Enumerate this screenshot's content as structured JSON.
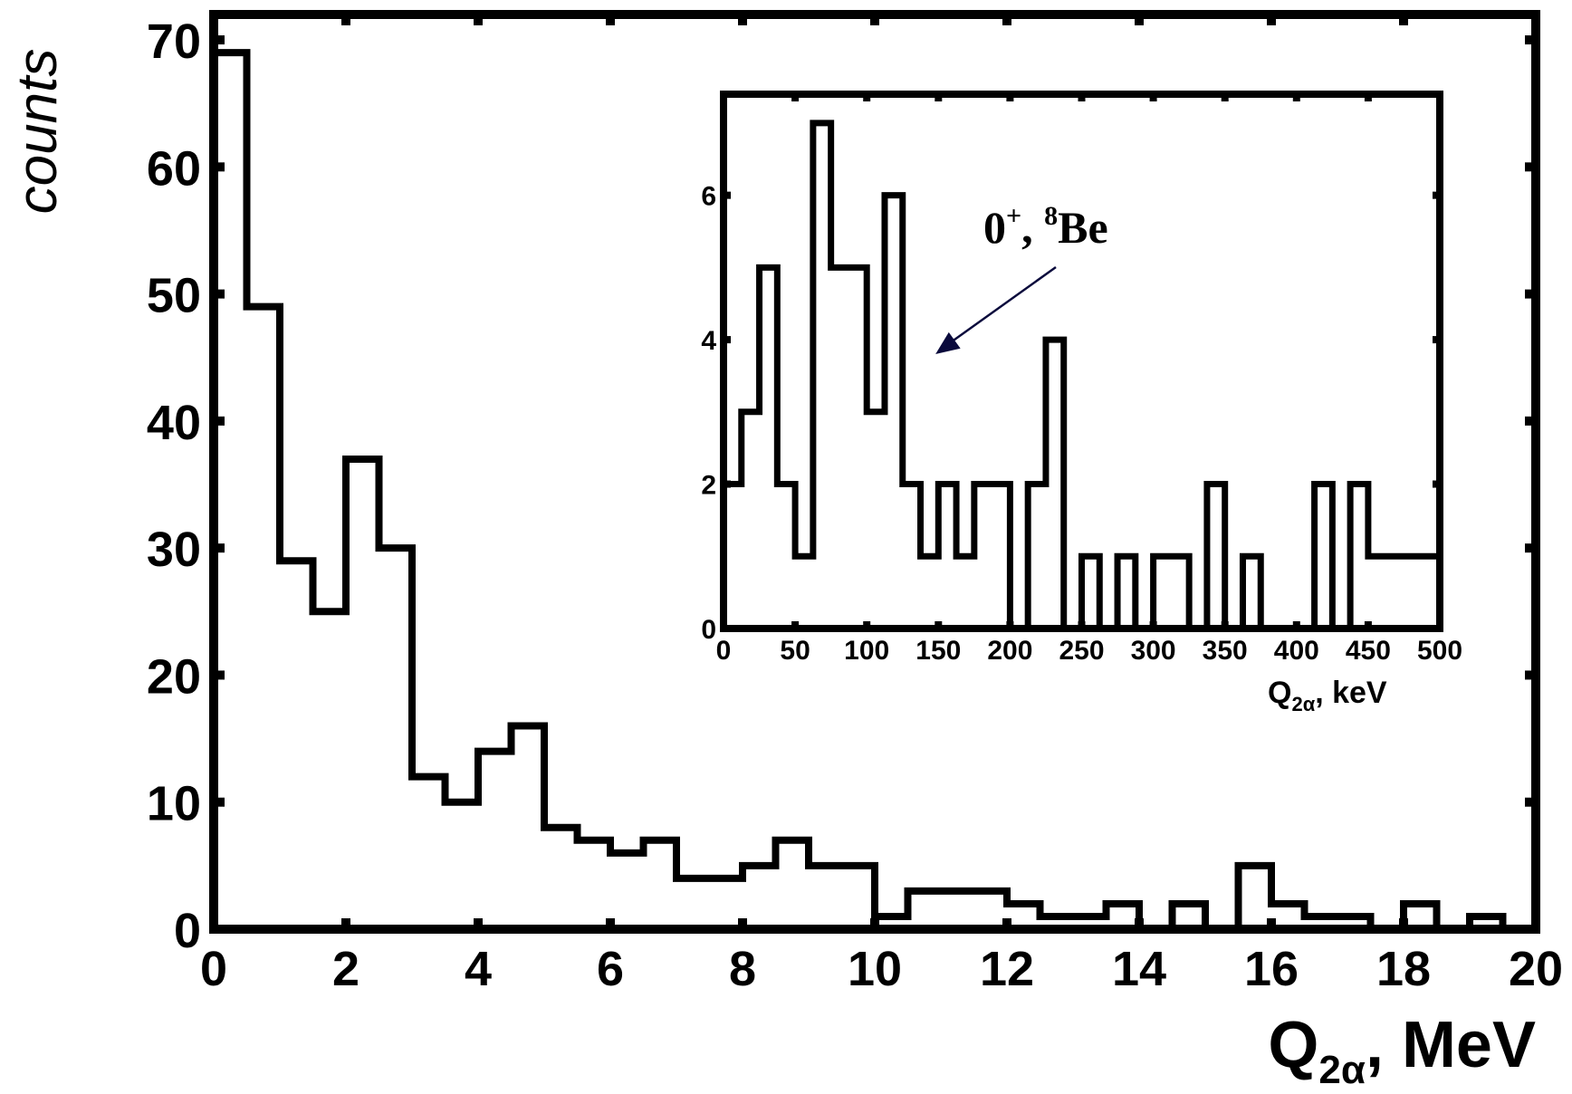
{
  "chart_data": [
    {
      "type": "histogram-step",
      "role": "main",
      "xlabel": {
        "main": "Q",
        "sub": "2α",
        "rest": ", MeV"
      },
      "ylabel": "counts",
      "xlim": [
        0,
        20
      ],
      "ylim": [
        0,
        72
      ],
      "xticks": [
        0,
        2,
        4,
        6,
        8,
        10,
        12,
        14,
        16,
        18,
        20
      ],
      "xtick_labels": [
        "0",
        "2",
        "4",
        "6",
        "8",
        "10",
        "12",
        "14",
        "16",
        "18",
        "20"
      ],
      "yticks": [
        0,
        10,
        20,
        30,
        40,
        50,
        60,
        70
      ],
      "ytick_labels": [
        "0",
        "10",
        "20",
        "30",
        "40",
        "50",
        "60",
        "70"
      ],
      "bin_width": 0.5,
      "bin_start": 0,
      "values": [
        69,
        49,
        29,
        25,
        37,
        30,
        12,
        10,
        14,
        16,
        8,
        7,
        6,
        7,
        4,
        4,
        5,
        7,
        5,
        5,
        1,
        3,
        3,
        3,
        2,
        1,
        1,
        2,
        0,
        2,
        0,
        5,
        2,
        1,
        1,
        0,
        2,
        0,
        1,
        0
      ],
      "color": "#000000"
    },
    {
      "type": "histogram-step",
      "role": "inset",
      "xlabel": {
        "main": "Q",
        "sub": "2α",
        "rest": ", keV"
      },
      "ylabel": "",
      "xlim": [
        0,
        500
      ],
      "ylim": [
        0,
        7.4
      ],
      "xticks": [
        0,
        50,
        100,
        150,
        200,
        250,
        300,
        350,
        400,
        450,
        500
      ],
      "xtick_labels": [
        "0",
        "50",
        "100",
        "150",
        "200",
        "250",
        "300",
        "350",
        "400",
        "450",
        "500"
      ],
      "yticks": [
        0,
        2,
        4,
        6
      ],
      "ytick_labels": [
        "0",
        "2",
        "4",
        "6"
      ],
      "bin_width": 12.5,
      "bin_start": 0,
      "values": [
        2,
        3,
        5,
        2,
        1,
        7,
        5,
        5,
        3,
        6,
        2,
        1,
        2,
        1,
        2,
        2,
        0,
        2,
        4,
        0,
        1,
        0,
        1,
        0,
        1,
        1,
        0,
        2,
        0,
        1,
        0,
        0,
        0,
        2,
        0,
        2,
        1,
        1,
        1,
        1
      ],
      "color": "#000000",
      "annotation": {
        "text_a": "0",
        "sup_a": "+",
        "text_b": ", ",
        "sup_b": "8",
        "text_c": "Be",
        "arrow_target": [
          148,
          3.8
        ],
        "arrow_color": "#0a0a3c"
      }
    }
  ]
}
